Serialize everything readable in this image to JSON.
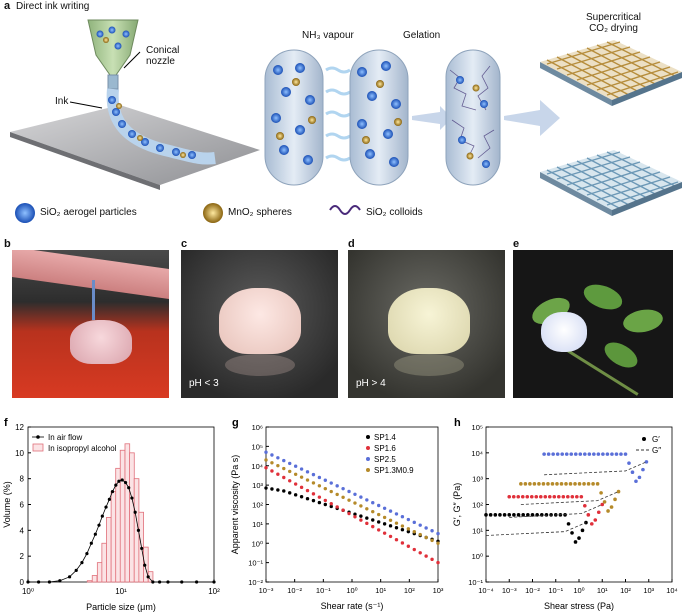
{
  "panel_a": {
    "letter": "a",
    "title": "Direct ink writing",
    "conical_nozzle": "Conical\nnozzle",
    "ink": "Ink",
    "nh3": "NH₃ vapour",
    "gelation": "Gelation",
    "supercritical": "Supercritical\nCO₂ drying",
    "legend": [
      {
        "label": "SiO₂ aerogel particles",
        "color": "#2f6fd1"
      },
      {
        "label": "MnO₂ spheres",
        "color": "#c79a2a"
      },
      {
        "label": "SiO₂ colloids",
        "color": "#4a2a7a"
      }
    ]
  },
  "panel_b": {
    "letter": "b"
  },
  "panel_c": {
    "letter": "c",
    "caption": "pH < 3"
  },
  "panel_d": {
    "letter": "d",
    "caption": "pH > 4"
  },
  "panel_e": {
    "letter": "e"
  },
  "chart_data": [
    {
      "panel": "f",
      "type": "bar",
      "xlabel": "Particle size (μm)",
      "ylabel": "Volume (%)",
      "xscale": "log",
      "xlim": [
        1,
        100
      ],
      "ylim": [
        0,
        12
      ],
      "yticks": [
        0,
        2,
        4,
        6,
        8,
        10,
        12
      ],
      "xticks": [
        "10⁰",
        "10¹",
        "10²"
      ],
      "legend_position": "top-left",
      "series": [
        {
          "name": "In air flow",
          "type": "line",
          "color": "#000000",
          "x": [
            1,
            1.3,
            1.7,
            2.2,
            2.8,
            3.3,
            3.8,
            4.3,
            4.8,
            5.3,
            5.8,
            6.3,
            6.9,
            7.5,
            8.1,
            8.8,
            9.5,
            10.3,
            11.2,
            12.1,
            13.1,
            14.2,
            15.4,
            16.7,
            18,
            19.6,
            22,
            26,
            32,
            45,
            65,
            100
          ],
          "y": [
            0,
            0,
            0,
            0.1,
            0.4,
            0.9,
            1.5,
            2.2,
            3.0,
            3.7,
            4.4,
            5.1,
            5.8,
            6.4,
            7.0,
            7.5,
            7.8,
            7.9,
            7.7,
            7.3,
            6.5,
            5.4,
            4.0,
            2.6,
            1.3,
            0.4,
            0,
            0,
            0,
            0,
            0,
            0
          ]
        },
        {
          "name": "In isopropyl alcohol",
          "type": "bar",
          "color": "#e0707a",
          "x": [
            4.6,
            5.2,
            5.9,
            6.6,
            7.4,
            8.3,
            9.3,
            10.4,
            11.7,
            13.1,
            14.7,
            16.5,
            18.5,
            20.8
          ],
          "y": [
            0.1,
            0.5,
            1.5,
            3.0,
            5.0,
            7.0,
            8.8,
            10.2,
            10.7,
            10.0,
            8.0,
            5.4,
            2.7,
            0.8
          ]
        }
      ]
    },
    {
      "panel": "g",
      "type": "scatter",
      "xlabel": "Shear rate (s⁻¹)",
      "ylabel": "Apparent viscosity (Pa s)",
      "xscale": "log",
      "yscale": "log",
      "xlim_exp": [
        -3,
        3
      ],
      "ylim_exp": [
        -2,
        6
      ],
      "legend_position": "top-right",
      "series": [
        {
          "name": "SP1.4",
          "color": "#000000",
          "x_exp": [
            -3,
            3
          ],
          "y_exp": [
            3,
            0.1
          ]
        },
        {
          "name": "SP1.6",
          "color": "#e0303a",
          "x_exp": [
            -3,
            3
          ],
          "y_exp": [
            3.9,
            -1
          ]
        },
        {
          "name": "SP2.5",
          "color": "#5a6fd8",
          "x_exp": [
            -3,
            3
          ],
          "y_exp": [
            4.7,
            0.5
          ]
        },
        {
          "name": "SP1.3M0.9",
          "color": "#b58a2a",
          "x_exp": [
            -3,
            3
          ],
          "y_exp": [
            4.3,
            0
          ]
        }
      ]
    },
    {
      "panel": "h",
      "type": "scatter",
      "xlabel": "Shear stress (Pa)",
      "ylabel": "G′, G″ (Pa)",
      "xscale": "log",
      "yscale": "log",
      "xlim_exp": [
        -4,
        4
      ],
      "ylim_exp": [
        -1,
        5
      ],
      "legend_position": "top-right",
      "legend": [
        {
          "name": "G′",
          "style": "markers"
        },
        {
          "name": "G″",
          "style": "dashed"
        }
      ],
      "series": [
        {
          "name": "black",
          "color": "#000000",
          "plateau_exp": 1.6,
          "x_start": -4,
          "x_end": -0.6
        },
        {
          "name": "red",
          "color": "#e0303a",
          "plateau_exp": 2.3,
          "x_start": -3,
          "x_end": 0.1
        },
        {
          "name": "brown",
          "color": "#b58a2a",
          "plateau_exp": 2.8,
          "x_start": -2.5,
          "x_end": 0.8
        },
        {
          "name": "blue",
          "color": "#5a6fd8",
          "plateau_exp": 3.95,
          "x_start": -1.5,
          "x_end": 2.0
        }
      ]
    }
  ]
}
